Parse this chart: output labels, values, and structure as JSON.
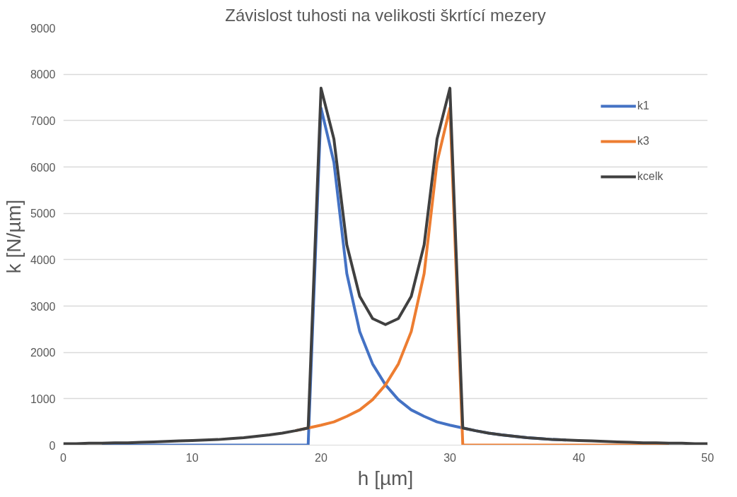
{
  "chart_data": {
    "type": "line",
    "title": "Závislost tuhosti na velikosti škrtící mezery",
    "xlabel": "h [µm]",
    "ylabel": "k [N/µm]",
    "x": [
      0,
      1,
      2,
      3,
      4,
      5,
      6,
      7,
      8,
      9,
      10,
      11,
      12,
      13,
      14,
      15,
      16,
      17,
      18,
      19,
      20,
      21,
      22,
      23,
      24,
      25,
      26,
      27,
      28,
      29,
      30,
      31,
      32,
      33,
      34,
      35,
      36,
      37,
      38,
      39,
      40,
      41,
      42,
      43,
      44,
      45,
      46,
      47,
      48,
      49,
      50
    ],
    "series": [
      {
        "name": "k1",
        "color": "#4472c4",
        "values": [
          null,
          null,
          null,
          0,
          0,
          0,
          0,
          0,
          0,
          0,
          0,
          0,
          0,
          0,
          0,
          0,
          0,
          0,
          0,
          0,
          7270,
          6100,
          3700,
          2450,
          1750,
          1300,
          980,
          760,
          620,
          500,
          430,
          370,
          310,
          260,
          220,
          190,
          160,
          140,
          120,
          110,
          null,
          null,
          null,
          null,
          null,
          null,
          null,
          null,
          null,
          null,
          null
        ]
      },
      {
        "name": "k3",
        "color": "#ed7d31",
        "values": [
          null,
          null,
          null,
          null,
          null,
          null,
          null,
          null,
          null,
          null,
          null,
          null,
          null,
          null,
          null,
          null,
          null,
          null,
          310,
          370,
          430,
          500,
          620,
          760,
          980,
          1300,
          1750,
          2450,
          3700,
          6100,
          7270,
          0,
          0,
          0,
          0,
          0,
          0,
          0,
          0,
          0,
          0,
          0,
          0,
          0,
          0,
          0,
          0,
          0,
          null,
          null,
          null
        ]
      },
      {
        "name": "kcelk",
        "color": "#404040",
        "values": [
          30,
          30,
          40,
          40,
          50,
          50,
          60,
          70,
          80,
          90,
          100,
          110,
          120,
          140,
          160,
          190,
          220,
          260,
          310,
          370,
          7700,
          6600,
          4320,
          3210,
          2730,
          2600,
          2730,
          3210,
          4320,
          6600,
          7700,
          370,
          310,
          260,
          220,
          190,
          160,
          140,
          120,
          110,
          100,
          90,
          80,
          70,
          60,
          50,
          50,
          40,
          40,
          30,
          30
        ]
      }
    ],
    "xlim": [
      0,
      50
    ],
    "xticks": [
      0,
      10,
      20,
      30,
      40,
      50
    ],
    "ylim": [
      0,
      9000
    ],
    "yticks": [
      0,
      1000,
      2000,
      3000,
      4000,
      5000,
      6000,
      7000,
      8000,
      9000
    ],
    "grid": "y",
    "legend": "top right",
    "marker": "none",
    "line_style": "solid"
  }
}
